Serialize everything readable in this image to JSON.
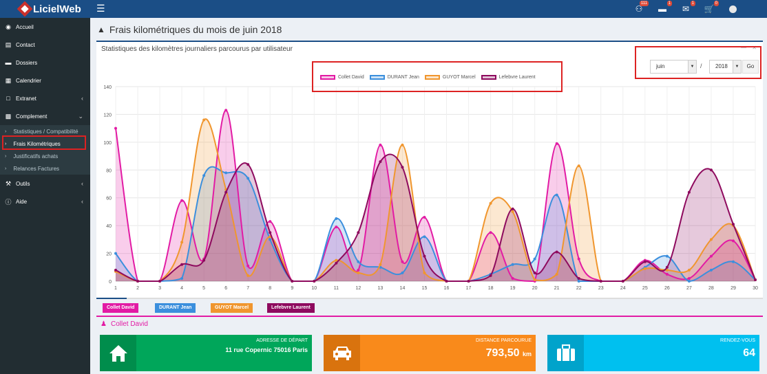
{
  "app": {
    "name": "LicielWeb"
  },
  "topbar": {
    "menu_icon": "hamburger-icon",
    "icons": [
      {
        "name": "users-icon",
        "badge": "111"
      },
      {
        "name": "tasks-icon",
        "badge": "1"
      },
      {
        "name": "envelope-icon",
        "badge": "1"
      },
      {
        "name": "cart-icon",
        "badge": "0"
      }
    ]
  },
  "sidebar": {
    "items": [
      {
        "label": "Accueil",
        "icon": "dashboard-icon"
      },
      {
        "label": "Contact",
        "icon": "address-card-icon"
      },
      {
        "label": "Dossiers",
        "icon": "folder-icon"
      },
      {
        "label": "Calendrier",
        "icon": "calendar-icon"
      },
      {
        "label": "Extranet",
        "icon": "file-icon"
      },
      {
        "label": "Complement",
        "icon": "bar-chart-icon"
      },
      {
        "label": "Outils",
        "icon": "wrench-icon"
      },
      {
        "label": "Aide",
        "icon": "info-icon"
      }
    ],
    "submenu": [
      {
        "label": "Statistiques / Compatibilité"
      },
      {
        "label": "Frais Kilométriques"
      },
      {
        "label": "Justificatifs achats"
      },
      {
        "label": "Relances Factures"
      }
    ]
  },
  "page": {
    "title": "Frais kilométriques du mois de juin 2018",
    "box_title": "Statistiques des kilomètres journaliers parcourus par utilisateur",
    "month": "juin",
    "separator": "/",
    "year": "2018",
    "go": "Go",
    "section_title": "Collet David"
  },
  "colors": {
    "collet": "#e21ba4",
    "durant": "#3b8fdd",
    "guyot": "#f0962e",
    "lefebvre": "#8e0a5e",
    "green": "#00a65a",
    "orange": "#f98a1b",
    "cyan": "#00c0ef"
  },
  "tabs": [
    {
      "label": "Collet David",
      "color": "#e21ba4"
    },
    {
      "label": "DURANT Jean",
      "color": "#3b8fdd"
    },
    {
      "label": "GUYOT Marcel",
      "color": "#f0962e"
    },
    {
      "label": "Lefebvre Laurent",
      "color": "#8e0a5e"
    }
  ],
  "info_boxes": [
    {
      "label": "Adresse de départ",
      "value": "11 rue Copernic 75016 Paris",
      "icon": "home-icon"
    },
    {
      "label": "Distance parcourue",
      "value": "793,50",
      "unit": "km",
      "icon": "car-icon"
    },
    {
      "label": "Rendez-vous",
      "value": "64",
      "icon": "briefcase-icon"
    }
  ],
  "chart_data": {
    "type": "area",
    "x": [
      1,
      2,
      3,
      4,
      5,
      6,
      7,
      8,
      9,
      10,
      11,
      12,
      13,
      14,
      15,
      16,
      17,
      18,
      19,
      20,
      21,
      22,
      23,
      24,
      25,
      26,
      27,
      28,
      29,
      30
    ],
    "ylim": [
      0,
      140
    ],
    "yticks": [
      0,
      20,
      40,
      60,
      80,
      100,
      120,
      140
    ],
    "grid": true,
    "legend_position": "top",
    "series": [
      {
        "name": "Collet David",
        "color": "#e21ba4",
        "values": [
          110,
          0,
          0,
          58,
          16,
          123,
          11,
          43,
          0,
          0,
          39,
          8,
          98,
          14,
          46,
          0,
          0,
          35,
          2,
          0,
          99,
          16,
          0,
          0,
          15,
          5,
          2,
          18,
          29,
          1
        ]
      },
      {
        "name": "DURANT Jean",
        "color": "#3b8fdd",
        "values": [
          20,
          0,
          0,
          2,
          76,
          78,
          74,
          30,
          0,
          0,
          45,
          14,
          10,
          6,
          32,
          0,
          0,
          5,
          12,
          16,
          62,
          0,
          0,
          0,
          10,
          18,
          0,
          8,
          14,
          1
        ]
      },
      {
        "name": "GUYOT Marcel",
        "color": "#f0962e",
        "values": [
          7,
          0,
          0,
          28,
          116,
          66,
          4,
          32,
          0,
          0,
          15,
          6,
          12,
          98,
          6,
          0,
          0,
          56,
          50,
          1,
          5,
          83,
          0,
          0,
          9,
          8,
          8,
          30,
          40,
          1
        ]
      },
      {
        "name": "Lefebvre Laurent",
        "color": "#8e0a5e",
        "values": [
          8,
          0,
          0,
          12,
          15,
          64,
          84,
          35,
          0,
          0,
          13,
          35,
          86,
          82,
          18,
          0,
          0,
          4,
          52,
          6,
          21,
          2,
          0,
          0,
          14,
          10,
          64,
          80,
          41,
          1
        ]
      }
    ]
  }
}
